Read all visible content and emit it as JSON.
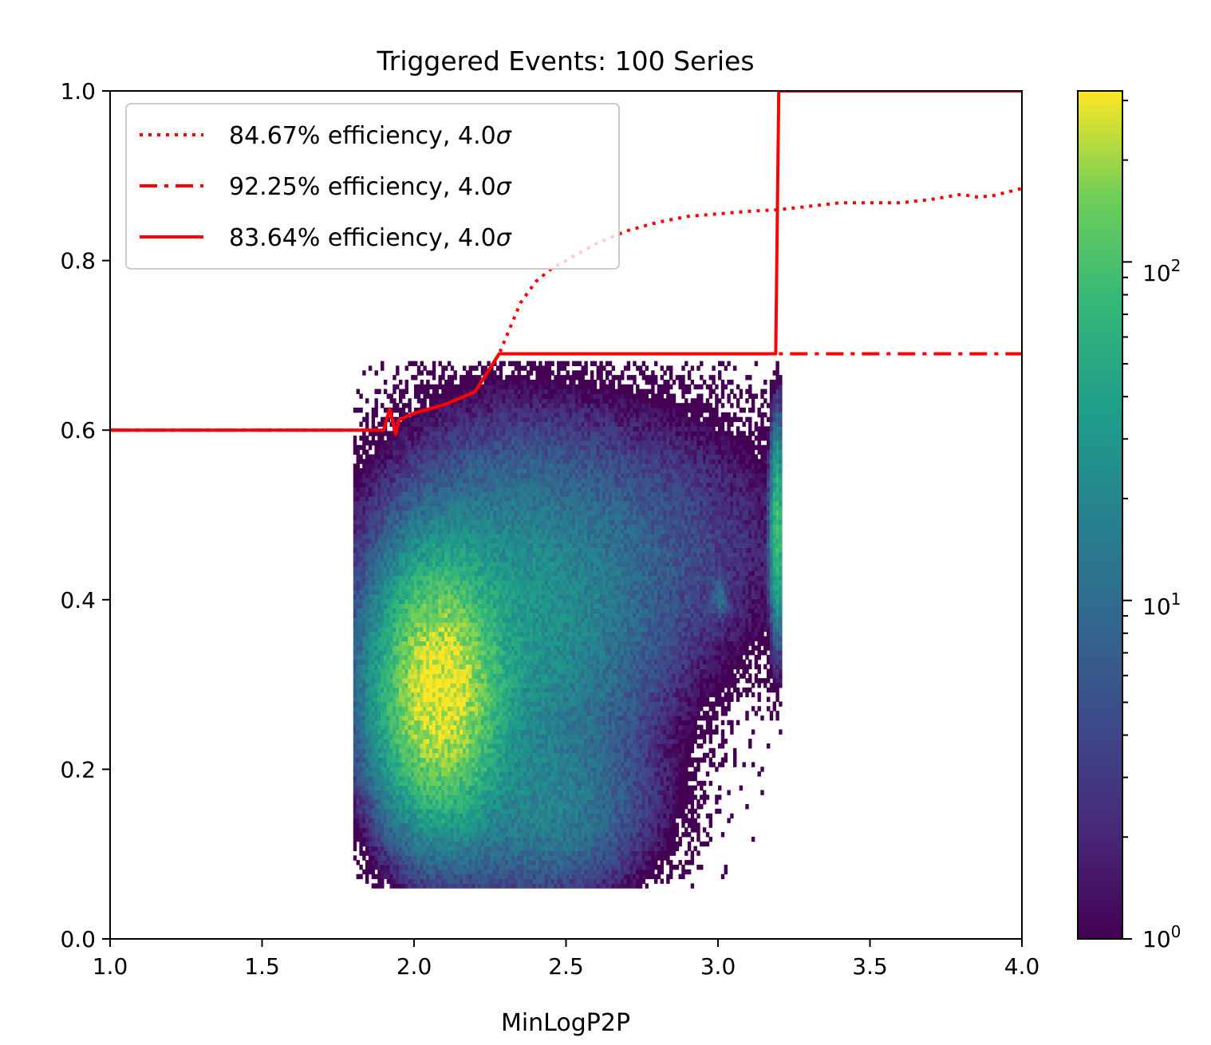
{
  "chart_data": {
    "type": "heatmap",
    "title": "Triggered Events: 100 Series",
    "xlabel": "MinLogP2P",
    "ylabel": "",
    "xlim": [
      1.0,
      4.0
    ],
    "ylim": [
      0.0,
      1.0
    ],
    "x_ticks": [
      "1.0",
      "1.5",
      "2.0",
      "2.5",
      "3.0",
      "3.5",
      "4.0"
    ],
    "x_tick_values": [
      1.0,
      1.5,
      2.0,
      2.5,
      3.0,
      3.5,
      4.0
    ],
    "y_ticks": [
      "0.0",
      "0.2",
      "0.4",
      "0.6",
      "0.8",
      "1.0"
    ],
    "y_tick_values": [
      0.0,
      0.2,
      0.4,
      0.6,
      0.8,
      1.0
    ],
    "colorbar": {
      "scale": "log",
      "colormap": "viridis",
      "range": [
        1,
        320
      ],
      "tick_values": [
        1,
        10,
        100
      ],
      "tick_labels": [
        {
          "base": "10",
          "exp": "0"
        },
        {
          "base": "10",
          "exp": "1"
        },
        {
          "base": "10",
          "exp": "2"
        }
      ]
    },
    "heatmap_blobs": [
      {
        "cx": 2.08,
        "cy": 0.29,
        "sx": 0.1,
        "sy": 0.075,
        "peak": 310
      },
      {
        "cx": 2.3,
        "cy": 0.36,
        "sx": 0.24,
        "sy": 0.11,
        "peak": 30
      },
      {
        "cx": 2.42,
        "cy": 0.15,
        "sx": 0.18,
        "sy": 0.055,
        "peak": 14
      },
      {
        "cx": 2.7,
        "cy": 0.46,
        "sx": 0.3,
        "sy": 0.09,
        "peak": 5
      },
      {
        "cx": 3.19,
        "cy": 0.48,
        "sx": 0.012,
        "sy": 0.06,
        "peak": 90
      },
      {
        "cx": 3.0,
        "cy": 0.4,
        "sx": 0.015,
        "sy": 0.012,
        "peak": 10
      }
    ],
    "series": [
      {
        "name": "84.67% efficiency, 4.0σ",
        "label_prefix": "84.67% efficiency, 4.0",
        "label_symbol": "σ",
        "style": "dotted",
        "color": "#ff0000",
        "x": [
          1.0,
          1.5,
          1.9,
          1.92,
          1.94,
          1.95,
          2.0,
          2.1,
          2.2,
          2.28,
          2.35,
          2.4,
          2.45,
          2.5,
          2.6,
          2.7,
          2.8,
          2.9,
          3.0,
          3.1,
          3.2,
          3.3,
          3.4,
          3.5,
          3.6,
          3.7,
          3.8,
          3.85,
          3.9,
          4.0
        ],
        "y": [
          0.6,
          0.6,
          0.6,
          0.625,
          0.595,
          0.612,
          0.62,
          0.63,
          0.645,
          0.69,
          0.75,
          0.775,
          0.79,
          0.8,
          0.82,
          0.835,
          0.845,
          0.852,
          0.855,
          0.858,
          0.86,
          0.864,
          0.868,
          0.868,
          0.868,
          0.872,
          0.878,
          0.875,
          0.876,
          0.885
        ]
      },
      {
        "name": "92.25% efficiency, 4.0σ",
        "label_prefix": "92.25% efficiency, 4.0",
        "label_symbol": "σ",
        "style": "dashdot",
        "color": "#ff0000",
        "x": [
          1.0,
          1.5,
          1.9,
          1.92,
          1.94,
          1.95,
          2.0,
          2.1,
          2.2,
          2.28,
          2.5,
          3.0,
          3.5,
          4.0
        ],
        "y": [
          0.6,
          0.6,
          0.6,
          0.625,
          0.595,
          0.612,
          0.62,
          0.63,
          0.645,
          0.69,
          0.69,
          0.69,
          0.69,
          0.69
        ]
      },
      {
        "name": "83.64% efficiency, 4.0σ",
        "label_prefix": "83.64% efficiency, 4.0",
        "label_symbol": "σ",
        "style": "solid",
        "color": "#ff0000",
        "x": [
          1.0,
          1.5,
          1.9,
          1.92,
          1.94,
          1.95,
          2.0,
          2.1,
          2.2,
          2.28,
          2.5,
          3.0,
          3.19,
          3.2,
          3.5,
          4.0
        ],
        "y": [
          0.6,
          0.6,
          0.6,
          0.625,
          0.595,
          0.612,
          0.62,
          0.63,
          0.645,
          0.69,
          0.69,
          0.69,
          0.69,
          1.0,
          1.0,
          1.0
        ]
      }
    ],
    "legend_position": "upper-left"
  }
}
